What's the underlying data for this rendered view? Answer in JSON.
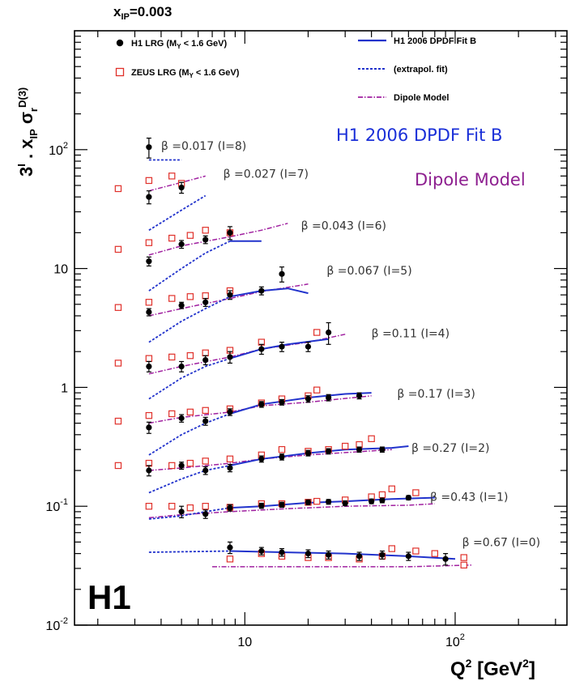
{
  "chart_data": {
    "type": "scatter",
    "title": "x_IP=0.003",
    "title_main": "x",
    "title_sub": "IP",
    "title_value": "=0.003",
    "xlabel": "Q² [GeV²]",
    "ylabel": "3^i · x_IP σ_r^D(3)",
    "x_scale": "log",
    "y_scale": "log",
    "xlim": [
      1.55,
      340
    ],
    "ylim": [
      0.01,
      1000
    ],
    "y_ticks": [
      {
        "v": 0.01,
        "label": "10",
        "sup": "-2"
      },
      {
        "v": 0.1,
        "label": "10",
        "sup": "-1"
      },
      {
        "v": 1,
        "label": "1",
        "sup": ""
      },
      {
        "v": 10,
        "label": "10",
        "sup": ""
      },
      {
        "v": 100,
        "label": "10",
        "sup": "2"
      }
    ],
    "x_ticks": [
      {
        "v": 10,
        "label": "10",
        "sup": ""
      },
      {
        "v": 100,
        "label": "10",
        "sup": "2"
      }
    ],
    "legend": {
      "h1": "H1 LRG (M",
      "h1_tail": " < 1.6 GeV)",
      "zeus": "ZEUS LRG (M",
      "zeus_tail": " < 1.6 GeV)",
      "sub": "Y",
      "fit": "H1 2006 DPDF Fit B",
      "extrap": "(extrapol. fit)",
      "dipole": "Dipole Model"
    },
    "annotations": {
      "fit": "H1 2006 DPDF Fit B",
      "dipole": "Dipole Model",
      "logo": "H1"
    },
    "colors": {
      "h1": "#000000",
      "zeus": "#e0302a",
      "fit": "#2233cc",
      "dipole": "#a020a0",
      "fit_text": "#1a2fd8",
      "dipole_text": "#8e2090"
    },
    "beta_bins": [
      {
        "label": "β =0.017 (I=8)",
        "h1": [
          [
            3.5,
            40,
            5
          ],
          [
            5,
            48,
            5
          ]
        ],
        "h1_extra": [
          [
            3.5,
            105,
            20
          ]
        ],
        "zeus": [
          [
            2.5,
            47
          ],
          [
            3.5,
            55
          ],
          [
            4.5,
            60
          ],
          [
            5,
            52
          ]
        ],
        "fit": [],
        "extrap": [
          [
            3.5,
            82
          ],
          [
            5,
            82
          ]
        ],
        "extrap2": [
          [
            3.5,
            21
          ],
          [
            5,
            31
          ],
          [
            6.5,
            41
          ]
        ],
        "dipole": [
          [
            3.5,
            45
          ],
          [
            5,
            53
          ],
          [
            6.5,
            60
          ]
        ]
      },
      {
        "label": "β =0.027 (I=7)",
        "h1": [
          [
            3.5,
            11.5,
            1
          ],
          [
            5,
            16,
            1.2
          ],
          [
            6.5,
            17.5,
            1.3
          ],
          [
            8.5,
            20,
            2.5
          ]
        ],
        "zeus": [
          [
            2.5,
            14.5
          ],
          [
            3.5,
            16.5
          ],
          [
            4.5,
            18
          ],
          [
            5.5,
            19
          ],
          [
            6.5,
            21
          ],
          [
            8.5,
            20
          ]
        ],
        "fit": [
          [
            8.5,
            17
          ],
          [
            12,
            17
          ]
        ],
        "extrap": [
          [
            3.5,
            6.5
          ],
          [
            5,
            10
          ],
          [
            6.5,
            13.5
          ],
          [
            8.5,
            17
          ]
        ],
        "dipole": [
          [
            3.5,
            13
          ],
          [
            5,
            15.5
          ],
          [
            8.5,
            18.5
          ],
          [
            12,
            21
          ],
          [
            16,
            24
          ]
        ]
      },
      {
        "label": "β =0.043 (I=6)",
        "h1": [
          [
            3.5,
            4.3,
            0.3
          ],
          [
            5,
            4.9,
            0.3
          ],
          [
            6.5,
            5.2,
            0.4
          ],
          [
            8.5,
            6,
            0.5
          ],
          [
            12,
            6.5,
            0.5
          ],
          [
            15,
            9,
            1.3
          ]
        ],
        "zeus": [
          [
            2.5,
            4.7
          ],
          [
            3.5,
            5.2
          ],
          [
            4.5,
            5.6
          ],
          [
            5.5,
            5.8
          ],
          [
            6.5,
            5.9
          ],
          [
            8.5,
            6.5
          ]
        ],
        "fit": [
          [
            8.5,
            5.8
          ],
          [
            12,
            6.5
          ],
          [
            16,
            6.8
          ],
          [
            20,
            6.2
          ]
        ],
        "extrap": [
          [
            3.5,
            2.4
          ],
          [
            5,
            3.6
          ],
          [
            6.5,
            4.6
          ],
          [
            8.5,
            5.8
          ]
        ],
        "dipole": [
          [
            3.5,
            4
          ],
          [
            5,
            4.6
          ],
          [
            8.5,
            5.6
          ],
          [
            12,
            6.4
          ],
          [
            20,
            7.4
          ]
        ]
      },
      {
        "label": "β =0.067 (I=5)",
        "h1": [
          [
            3.5,
            1.5,
            0.15
          ],
          [
            5,
            1.5,
            0.15
          ],
          [
            6.5,
            1.7,
            0.15
          ],
          [
            8.5,
            1.8,
            0.2
          ],
          [
            12,
            2.1,
            0.2
          ],
          [
            15,
            2.2,
            0.2
          ],
          [
            20,
            2.2,
            0.2
          ],
          [
            25,
            2.9,
            0.6
          ]
        ],
        "zeus": [
          [
            2.5,
            1.6
          ],
          [
            3.5,
            1.75
          ],
          [
            4.5,
            1.8
          ],
          [
            5.5,
            1.85
          ],
          [
            6.5,
            1.95
          ],
          [
            8.5,
            2.05
          ],
          [
            12,
            2.4
          ],
          [
            22,
            2.9
          ]
        ],
        "fit": [
          [
            8.5,
            1.75
          ],
          [
            12,
            2.1
          ],
          [
            16,
            2.3
          ],
          [
            25,
            2.55
          ]
        ],
        "extrap": [
          [
            3.5,
            0.8
          ],
          [
            5,
            1.2
          ],
          [
            6.5,
            1.5
          ],
          [
            8.5,
            1.75
          ]
        ],
        "dipole": [
          [
            3.5,
            1.3
          ],
          [
            5,
            1.5
          ],
          [
            8.5,
            1.8
          ],
          [
            12,
            2.1
          ],
          [
            20,
            2.4
          ],
          [
            30,
            2.8
          ]
        ]
      },
      {
        "label": "β =0.11 (I=4)",
        "h1": [
          [
            3.5,
            0.46,
            0.05
          ],
          [
            5,
            0.55,
            0.04
          ],
          [
            6.5,
            0.52,
            0.04
          ],
          [
            8.5,
            0.62,
            0.04
          ],
          [
            12,
            0.72,
            0.04
          ],
          [
            15,
            0.75,
            0.04
          ],
          [
            20,
            0.8,
            0.05
          ],
          [
            25,
            0.82,
            0.05
          ],
          [
            35,
            0.85,
            0.05
          ]
        ],
        "zeus": [
          [
            2.5,
            0.52
          ],
          [
            3.5,
            0.58
          ],
          [
            4.5,
            0.6
          ],
          [
            5.5,
            0.62
          ],
          [
            6.5,
            0.64
          ],
          [
            8.5,
            0.66
          ],
          [
            12,
            0.74
          ],
          [
            15,
            0.8
          ],
          [
            20,
            0.85
          ],
          [
            22,
            0.95
          ]
        ],
        "fit": [
          [
            8.5,
            0.6
          ],
          [
            12,
            0.72
          ],
          [
            20,
            0.82
          ],
          [
            30,
            0.88
          ],
          [
            40,
            0.9
          ]
        ],
        "extrap": [
          [
            3.5,
            0.27
          ],
          [
            5,
            0.4
          ],
          [
            6.5,
            0.5
          ],
          [
            8.5,
            0.6
          ]
        ],
        "dipole": [
          [
            3.5,
            0.5
          ],
          [
            5,
            0.56
          ],
          [
            8.5,
            0.62
          ],
          [
            12,
            0.7
          ],
          [
            20,
            0.75
          ],
          [
            40,
            0.85
          ]
        ]
      },
      {
        "label": "β =0.17 (I=3)",
        "h1": [
          [
            3.5,
            0.2,
            0.02
          ],
          [
            5,
            0.22,
            0.015
          ],
          [
            6.5,
            0.2,
            0.015
          ],
          [
            8.5,
            0.21,
            0.015
          ],
          [
            12,
            0.25,
            0.015
          ],
          [
            15,
            0.26,
            0.015
          ],
          [
            20,
            0.28,
            0.015
          ],
          [
            25,
            0.29,
            0.015
          ],
          [
            35,
            0.3,
            0.015
          ],
          [
            45,
            0.3,
            0.015
          ]
        ],
        "zeus": [
          [
            2.5,
            0.22
          ],
          [
            3.5,
            0.23
          ],
          [
            4.5,
            0.22
          ],
          [
            5.5,
            0.23
          ],
          [
            6.5,
            0.24
          ],
          [
            8.5,
            0.25
          ],
          [
            12,
            0.27
          ],
          [
            15,
            0.3
          ],
          [
            20,
            0.29
          ],
          [
            25,
            0.3
          ],
          [
            30,
            0.32
          ],
          [
            40,
            0.37
          ],
          [
            35,
            0.33
          ]
        ],
        "fit": [
          [
            8.5,
            0.22
          ],
          [
            12,
            0.25
          ],
          [
            20,
            0.28
          ],
          [
            30,
            0.3
          ],
          [
            50,
            0.31
          ],
          [
            60,
            0.32
          ]
        ],
        "extrap": [
          [
            3.5,
            0.13
          ],
          [
            5,
            0.17
          ],
          [
            6.5,
            0.2
          ],
          [
            8.5,
            0.22
          ]
        ],
        "dipole": [
          [
            3.5,
            0.2
          ],
          [
            5,
            0.21
          ],
          [
            8.5,
            0.23
          ],
          [
            12,
            0.25
          ],
          [
            20,
            0.27
          ],
          [
            50,
            0.3
          ]
        ]
      },
      {
        "label": "β =0.27 (I=2)",
        "h1": [
          [
            5,
            0.09,
            0.01
          ],
          [
            6.5,
            0.086,
            0.007
          ],
          [
            8.5,
            0.097,
            0.006
          ],
          [
            12,
            0.101,
            0.005
          ],
          [
            15,
            0.103,
            0.005
          ],
          [
            20,
            0.108,
            0.005
          ],
          [
            25,
            0.109,
            0.005
          ],
          [
            30,
            0.106,
            0.005
          ],
          [
            40,
            0.11,
            0.005
          ],
          [
            45,
            0.112,
            0.005
          ],
          [
            60,
            0.118,
            0.005
          ]
        ],
        "zeus": [
          [
            3.5,
            0.1
          ],
          [
            4.5,
            0.1
          ],
          [
            5.5,
            0.097
          ],
          [
            6.5,
            0.1
          ],
          [
            8.5,
            0.098
          ],
          [
            12,
            0.105
          ],
          [
            15,
            0.105
          ],
          [
            20,
            0.108
          ],
          [
            22,
            0.11
          ],
          [
            30,
            0.113
          ],
          [
            40,
            0.12
          ],
          [
            45,
            0.125
          ],
          [
            50,
            0.14
          ],
          [
            65,
            0.13
          ]
        ],
        "fit": [
          [
            8.5,
            0.097
          ],
          [
            12,
            0.1
          ],
          [
            20,
            0.107
          ],
          [
            30,
            0.11
          ],
          [
            50,
            0.115
          ],
          [
            80,
            0.118
          ]
        ],
        "extrap": [
          [
            3.5,
            0.078
          ],
          [
            5,
            0.083
          ],
          [
            6.5,
            0.09
          ],
          [
            8.5,
            0.097
          ]
        ],
        "dipole": [
          [
            3.5,
            0.08
          ],
          [
            5,
            0.085
          ],
          [
            8.5,
            0.09
          ],
          [
            15,
            0.095
          ],
          [
            30,
            0.1
          ],
          [
            60,
            0.102
          ],
          [
            80,
            0.105
          ]
        ]
      },
      {
        "label": "β =0.43 (I=1)",
        "h1": [
          [
            8.5,
            0.045,
            0.005
          ],
          [
            12,
            0.042,
            0.003
          ],
          [
            15,
            0.041,
            0.003
          ],
          [
            20,
            0.04,
            0.003
          ],
          [
            25,
            0.039,
            0.003
          ],
          [
            35,
            0.038,
            0.003
          ],
          [
            45,
            0.039,
            0.003
          ],
          [
            60,
            0.038,
            0.003
          ],
          [
            90,
            0.036,
            0.004
          ]
        ],
        "zeus": [
          [
            8.5,
            0.036
          ],
          [
            12,
            0.04
          ],
          [
            15,
            0.038
          ],
          [
            20,
            0.037
          ],
          [
            25,
            0.037
          ],
          [
            35,
            0.036
          ],
          [
            45,
            0.038
          ],
          [
            50,
            0.044
          ],
          [
            65,
            0.042
          ],
          [
            80,
            0.04
          ],
          [
            110,
            0.037
          ],
          [
            110,
            0.032
          ]
        ],
        "fit": [
          [
            8.5,
            0.042
          ],
          [
            15,
            0.041
          ],
          [
            30,
            0.04
          ],
          [
            60,
            0.038
          ],
          [
            100,
            0.036
          ]
        ],
        "extrap": [
          [
            3.5,
            0.041
          ],
          [
            8.5,
            0.042
          ]
        ],
        "dipole": [
          [
            7,
            0.031
          ],
          [
            15,
            0.031
          ],
          [
            30,
            0.031
          ],
          [
            60,
            0.031
          ],
          [
            120,
            0.032
          ]
        ]
      }
    ],
    "beta_labels": [
      {
        "text": "β =0.017 (I=8)",
        "x": 4.0,
        "y": 108
      },
      {
        "text": "β =0.027 (I=7)",
        "x": 7.9,
        "y": 63
      },
      {
        "text": "β =0.043 (I=6)",
        "x": 18.5,
        "y": 23
      },
      {
        "text": "β =0.067 (I=5)",
        "x": 24.5,
        "y": 9.6
      },
      {
        "text": "β =0.11 (I=4)",
        "x": 40,
        "y": 2.85
      },
      {
        "text": "β =0.17 (I=3)",
        "x": 53,
        "y": 0.89
      },
      {
        "text": "β =0.27 (I=2)",
        "x": 62,
        "y": 0.31
      },
      {
        "text": "β =0.43 (I=1)",
        "x": 76,
        "y": 0.12
      },
      {
        "text": "β =0.67 (I=0)",
        "x": 108,
        "y": 0.05
      }
    ]
  }
}
